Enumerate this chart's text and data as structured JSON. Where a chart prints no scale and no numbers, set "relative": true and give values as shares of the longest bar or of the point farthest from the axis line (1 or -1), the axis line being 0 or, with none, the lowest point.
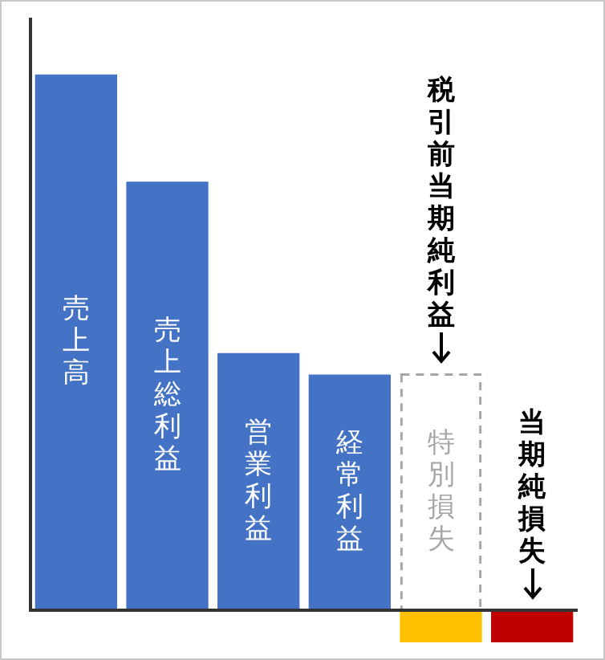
{
  "chart_data": {
    "type": "bar",
    "relative": true,
    "categories": [
      "売上高",
      "売上総利益",
      "営業利益",
      "経常利益",
      "特別損失",
      "当期純損失"
    ],
    "series": [
      {
        "colors": [
          "#4472c4",
          "#4472c4",
          "#4472c4",
          "#4472c4",
          null,
          "#c00000"
        ],
        "values": [
          1,
          0.8,
          0.48,
          0.44,
          null,
          -0.06
        ]
      },
      {
        "color": "#a6a6a6",
        "line_style": "dashed",
        "values": [
          null,
          null,
          null,
          null,
          0.44,
          null
        ]
      },
      {
        "color": "#ffc000",
        "values": [
          null,
          null,
          null,
          null,
          -0.06,
          null
        ]
      }
    ],
    "annotations": [
      {
        "text": "税引前当期純利益",
        "x": "特別損失",
        "y": 0.44
      }
    ]
  }
}
